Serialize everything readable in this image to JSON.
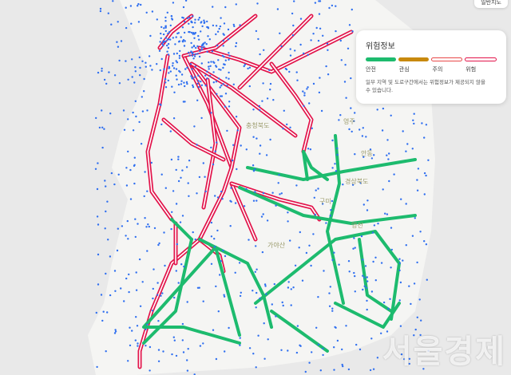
{
  "map_type_button": "일반지도",
  "legend": {
    "title": "위험정보",
    "levels": [
      {
        "label": "안전",
        "color": "#1dbb6e"
      },
      {
        "label": "관심",
        "color": "#c8890e"
      },
      {
        "label": "주의",
        "color": "#ffffff",
        "border": "#e84848"
      },
      {
        "label": "위험",
        "color": "#e2134a"
      }
    ],
    "note": "일부 지역 및 도로구간에서는 위험정보가 제공되지 않을 수 있습니다."
  },
  "places": [
    "충청북도",
    "경상북도",
    "영주",
    "안동",
    "영천",
    "구미",
    "가야산"
  ],
  "watermark": "서울경제",
  "colors": {
    "safe": "#1dbb6e",
    "danger": "#e2134a",
    "incident_dot": "#2f6ff0",
    "land": "#f4f4f2",
    "sea": "#e9e9e9"
  }
}
